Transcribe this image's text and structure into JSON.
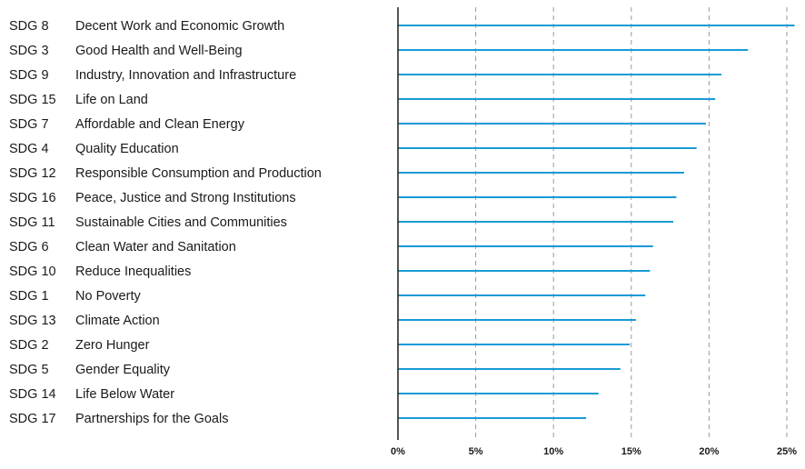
{
  "chart_data": {
    "type": "bar",
    "orientation": "horizontal",
    "title": "",
    "xlabel": "",
    "ylabel": "",
    "xlim": [
      0,
      25.5
    ],
    "grid": "vertical-dashed",
    "colors": {
      "bar": "#1a9ad6",
      "grid": "#9a9a9a",
      "axis": "#1a1a1a",
      "text": "#1a1a1a"
    },
    "ticks": [
      {
        "value": 0,
        "label": "0%"
      },
      {
        "value": 5,
        "label": "5%"
      },
      {
        "value": 10,
        "label": "10%"
      },
      {
        "value": 15,
        "label": "15%"
      },
      {
        "value": 20,
        "label": "20%"
      },
      {
        "value": 25,
        "label": "25%"
      }
    ],
    "items": [
      {
        "code": "SDG 8",
        "name": "Decent Work and Economic Growth",
        "value": 25.5
      },
      {
        "code": "SDG 3",
        "name": "Good Health and Well-Being",
        "value": 22.5
      },
      {
        "code": "SDG 9",
        "name": "Industry, Innovation and Infrastructure",
        "value": 20.8
      },
      {
        "code": "SDG 15",
        "name": "Life on Land",
        "value": 20.4
      },
      {
        "code": "SDG 7",
        "name": "Affordable and Clean Energy",
        "value": 19.8
      },
      {
        "code": "SDG 4",
        "name": "Quality Education",
        "value": 19.2
      },
      {
        "code": "SDG 12",
        "name": "Responsible Consumption and Production",
        "value": 18.4
      },
      {
        "code": "SDG 16",
        "name": "Peace, Justice and Strong Institutions",
        "value": 17.9
      },
      {
        "code": "SDG 11",
        "name": "Sustainable Cities and Communities",
        "value": 17.7
      },
      {
        "code": "SDG 6",
        "name": "Clean Water and Sanitation",
        "value": 16.4
      },
      {
        "code": "SDG 10",
        "name": "Reduce Inequalities",
        "value": 16.2
      },
      {
        "code": "SDG 1",
        "name": "No Poverty",
        "value": 15.9
      },
      {
        "code": "SDG 13",
        "name": "Climate Action",
        "value": 15.3
      },
      {
        "code": "SDG 2",
        "name": "Zero Hunger",
        "value": 14.9
      },
      {
        "code": "SDG 5",
        "name": "Gender Equality",
        "value": 14.3
      },
      {
        "code": "SDG 14",
        "name": "Life Below Water",
        "value": 12.9
      },
      {
        "code": "SDG 17",
        "name": "Partnerships for the Goals",
        "value": 12.1
      }
    ]
  }
}
